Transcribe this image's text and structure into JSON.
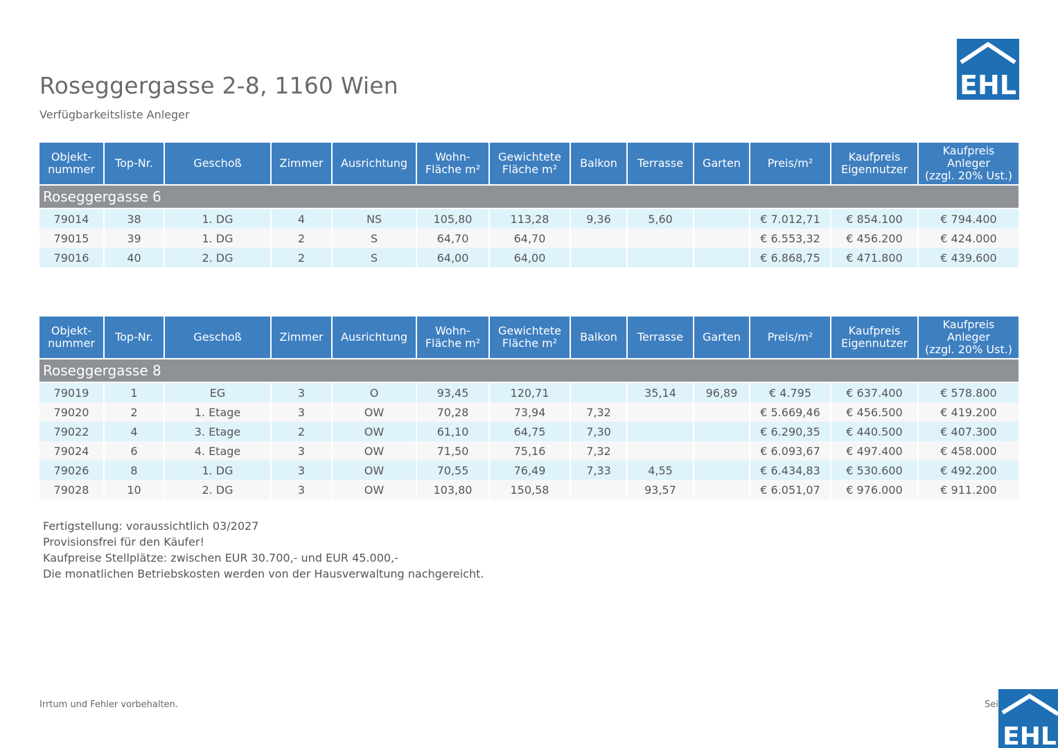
{
  "header": {
    "title": "Roseggergasse 2-8, 1160 Wien",
    "subtitle": "Verfügbarkeitsliste Anleger",
    "logo_text": "EHL"
  },
  "columns": [
    "Objekt-\nnummer",
    "Top-Nr.",
    "Geschoß",
    "Zimmer",
    "Ausrichtung",
    "Wohn-\nFläche m²",
    "Gewichtete\nFläche m²",
    "Balkon",
    "Terrasse",
    "Garten",
    "Preis/m²",
    "Kaufpreis\nEigennutzer",
    "Kaufpreis\nAnleger\n(zzgl. 20% Ust.)"
  ],
  "tables": [
    {
      "group": "Roseggergasse 6",
      "rows": [
        [
          "79014",
          "38",
          "1. DG",
          "4",
          "NS",
          "105,80",
          "113,28",
          "9,36",
          "5,60",
          "",
          "€ 7.012,71",
          "€ 854.100",
          "€ 794.400"
        ],
        [
          "79015",
          "39",
          "1. DG",
          "2",
          "S",
          "64,70",
          "64,70",
          "",
          "",
          "",
          "€ 6.553,32",
          "€ 456.200",
          "€ 424.000"
        ],
        [
          "79016",
          "40",
          "2. DG",
          "2",
          "S",
          "64,00",
          "64,00",
          "",
          "",
          "",
          "€ 6.868,75",
          "€ 471.800",
          "€ 439.600"
        ]
      ]
    },
    {
      "group": "Roseggergasse 8",
      "rows": [
        [
          "79019",
          "1",
          "EG",
          "3",
          "O",
          "93,45",
          "120,71",
          "",
          "35,14",
          "96,89",
          "€ 4.795",
          "€ 637.400",
          "€ 578.800"
        ],
        [
          "79020",
          "2",
          "1. Etage",
          "3",
          "OW",
          "70,28",
          "73,94",
          "7,32",
          "",
          "",
          "€ 5.669,46",
          "€ 456.500",
          "€ 419.200"
        ],
        [
          "79022",
          "4",
          "3. Etage",
          "2",
          "OW",
          "61,10",
          "64,75",
          "7,30",
          "",
          "",
          "€ 6.290,35",
          "€ 440.500",
          "€ 407.300"
        ],
        [
          "79024",
          "6",
          "4. Etage",
          "3",
          "OW",
          "71,50",
          "75,16",
          "7,32",
          "",
          "",
          "€ 6.093,67",
          "€ 497.400",
          "€ 458.000"
        ],
        [
          "79026",
          "8",
          "1. DG",
          "3",
          "OW",
          "70,55",
          "76,49",
          "7,33",
          "4,55",
          "",
          "€ 6.434,83",
          "€ 530.600",
          "€ 492.200"
        ],
        [
          "79028",
          "10",
          "2. DG",
          "3",
          "OW",
          "103,80",
          "150,58",
          "",
          "93,57",
          "",
          "€ 6.051,07",
          "€ 976.000",
          "€ 911.200"
        ]
      ]
    }
  ],
  "notes": [
    "Fertigstellung: voraussichtlich 03/2027",
    "Provisionsfrei für den Käufer!",
    "Kaufpreise Stellplätze: zwischen EUR 30.700,- und EUR 45.000,-",
    "Die monatlichen Betriebskosten werden von der Hausverwaltung nachgereicht."
  ],
  "footer": {
    "disclaimer": "Irrtum und Fehler vorbehalten.",
    "page": "Sei"
  },
  "colors": {
    "header_blue": "#3e7fc0",
    "group_gray": "#8e9196",
    "row_light_blue": "#dff3fb",
    "logo_blue": "#1f6fb5"
  }
}
